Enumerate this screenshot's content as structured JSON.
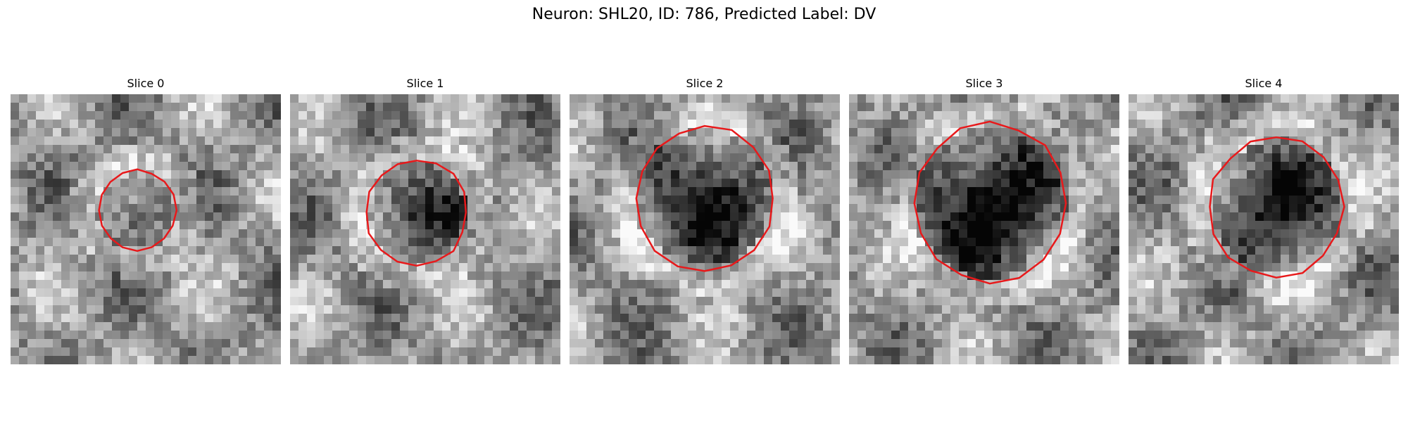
{
  "figure": {
    "title": "Neuron: SHL20, ID: 786, Predicted Label: DV",
    "outline_color": "#e8191b",
    "panels": [
      {
        "title": "Slice 0",
        "intensity": 0.45
      },
      {
        "title": "Slice 1",
        "intensity": 0.7
      },
      {
        "title": "Slice 2",
        "intensity": 0.8
      },
      {
        "title": "Slice 3",
        "intensity": 1.0
      },
      {
        "title": "Slice 4",
        "intensity": 0.75
      }
    ]
  }
}
